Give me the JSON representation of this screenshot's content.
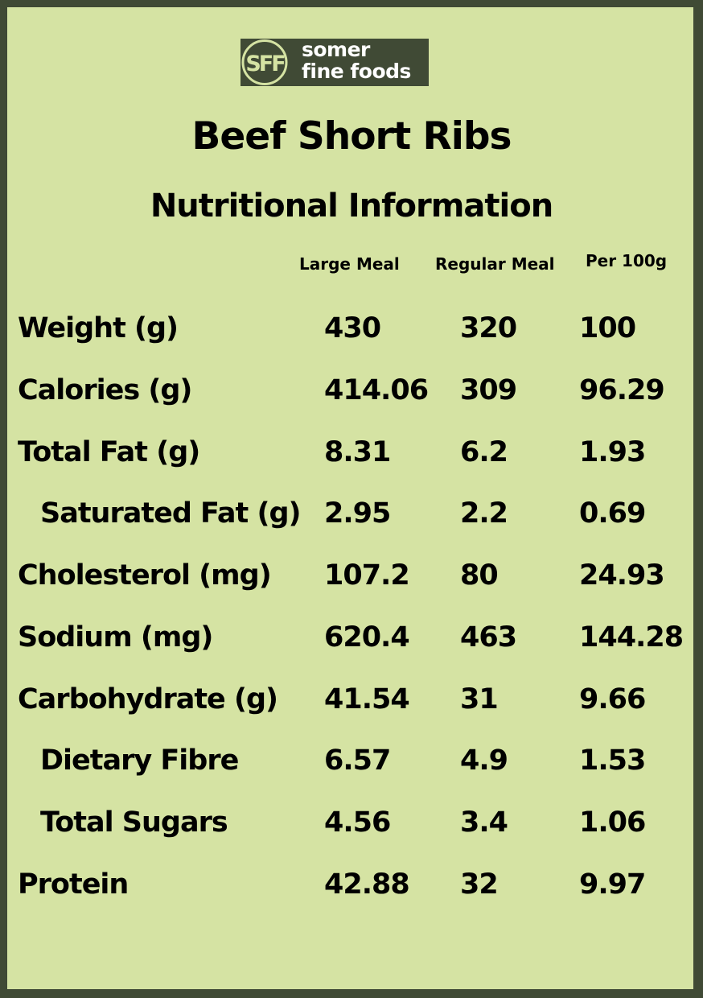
{
  "brand": {
    "logo_monogram": "SFF",
    "name_line1": "somer",
    "name_line2": "fine foods",
    "colors": {
      "frame": "#404a35",
      "background": "#d5e3a3",
      "logo_mark": "#d5e3a3"
    }
  },
  "title": "Beef Short Ribs",
  "subtitle": "Nutritional Information",
  "columns": [
    "Large Meal",
    "Regular Meal",
    "Per 100g"
  ],
  "rows": [
    {
      "label": "Weight (g)",
      "large": "430",
      "regular": "320",
      "per100": "100"
    },
    {
      "label": "Calories (g)",
      "large": "414.06",
      "regular": "309",
      "per100": "96.29"
    },
    {
      "label": "Total Fat (g)",
      "large": "8.31",
      "regular": "6.2",
      "per100": "1.93"
    },
    {
      "label": "Saturated Fat (g)",
      "large": "2.95",
      "regular": "2.2",
      "per100": "0.69"
    },
    {
      "label": "Cholesterol (mg)",
      "large": "107.2",
      "regular": "80",
      "per100": "24.93"
    },
    {
      "label": "Sodium (mg)",
      "large": "620.4",
      "regular": "463",
      "per100": "144.28"
    },
    {
      "label": "Carbohydrate (g)",
      "large": "41.54",
      "regular": "31",
      "per100": "9.66"
    },
    {
      "label": "Dietary Fibre",
      "large": "6.57",
      "regular": "4.9",
      "per100": "1.53"
    },
    {
      "label": "Total Sugars",
      "large": "4.56",
      "regular": "3.4",
      "per100": "1.06"
    },
    {
      "label": "Protein",
      "large": "42.88",
      "regular": "32",
      "per100": "9.97"
    }
  ]
}
